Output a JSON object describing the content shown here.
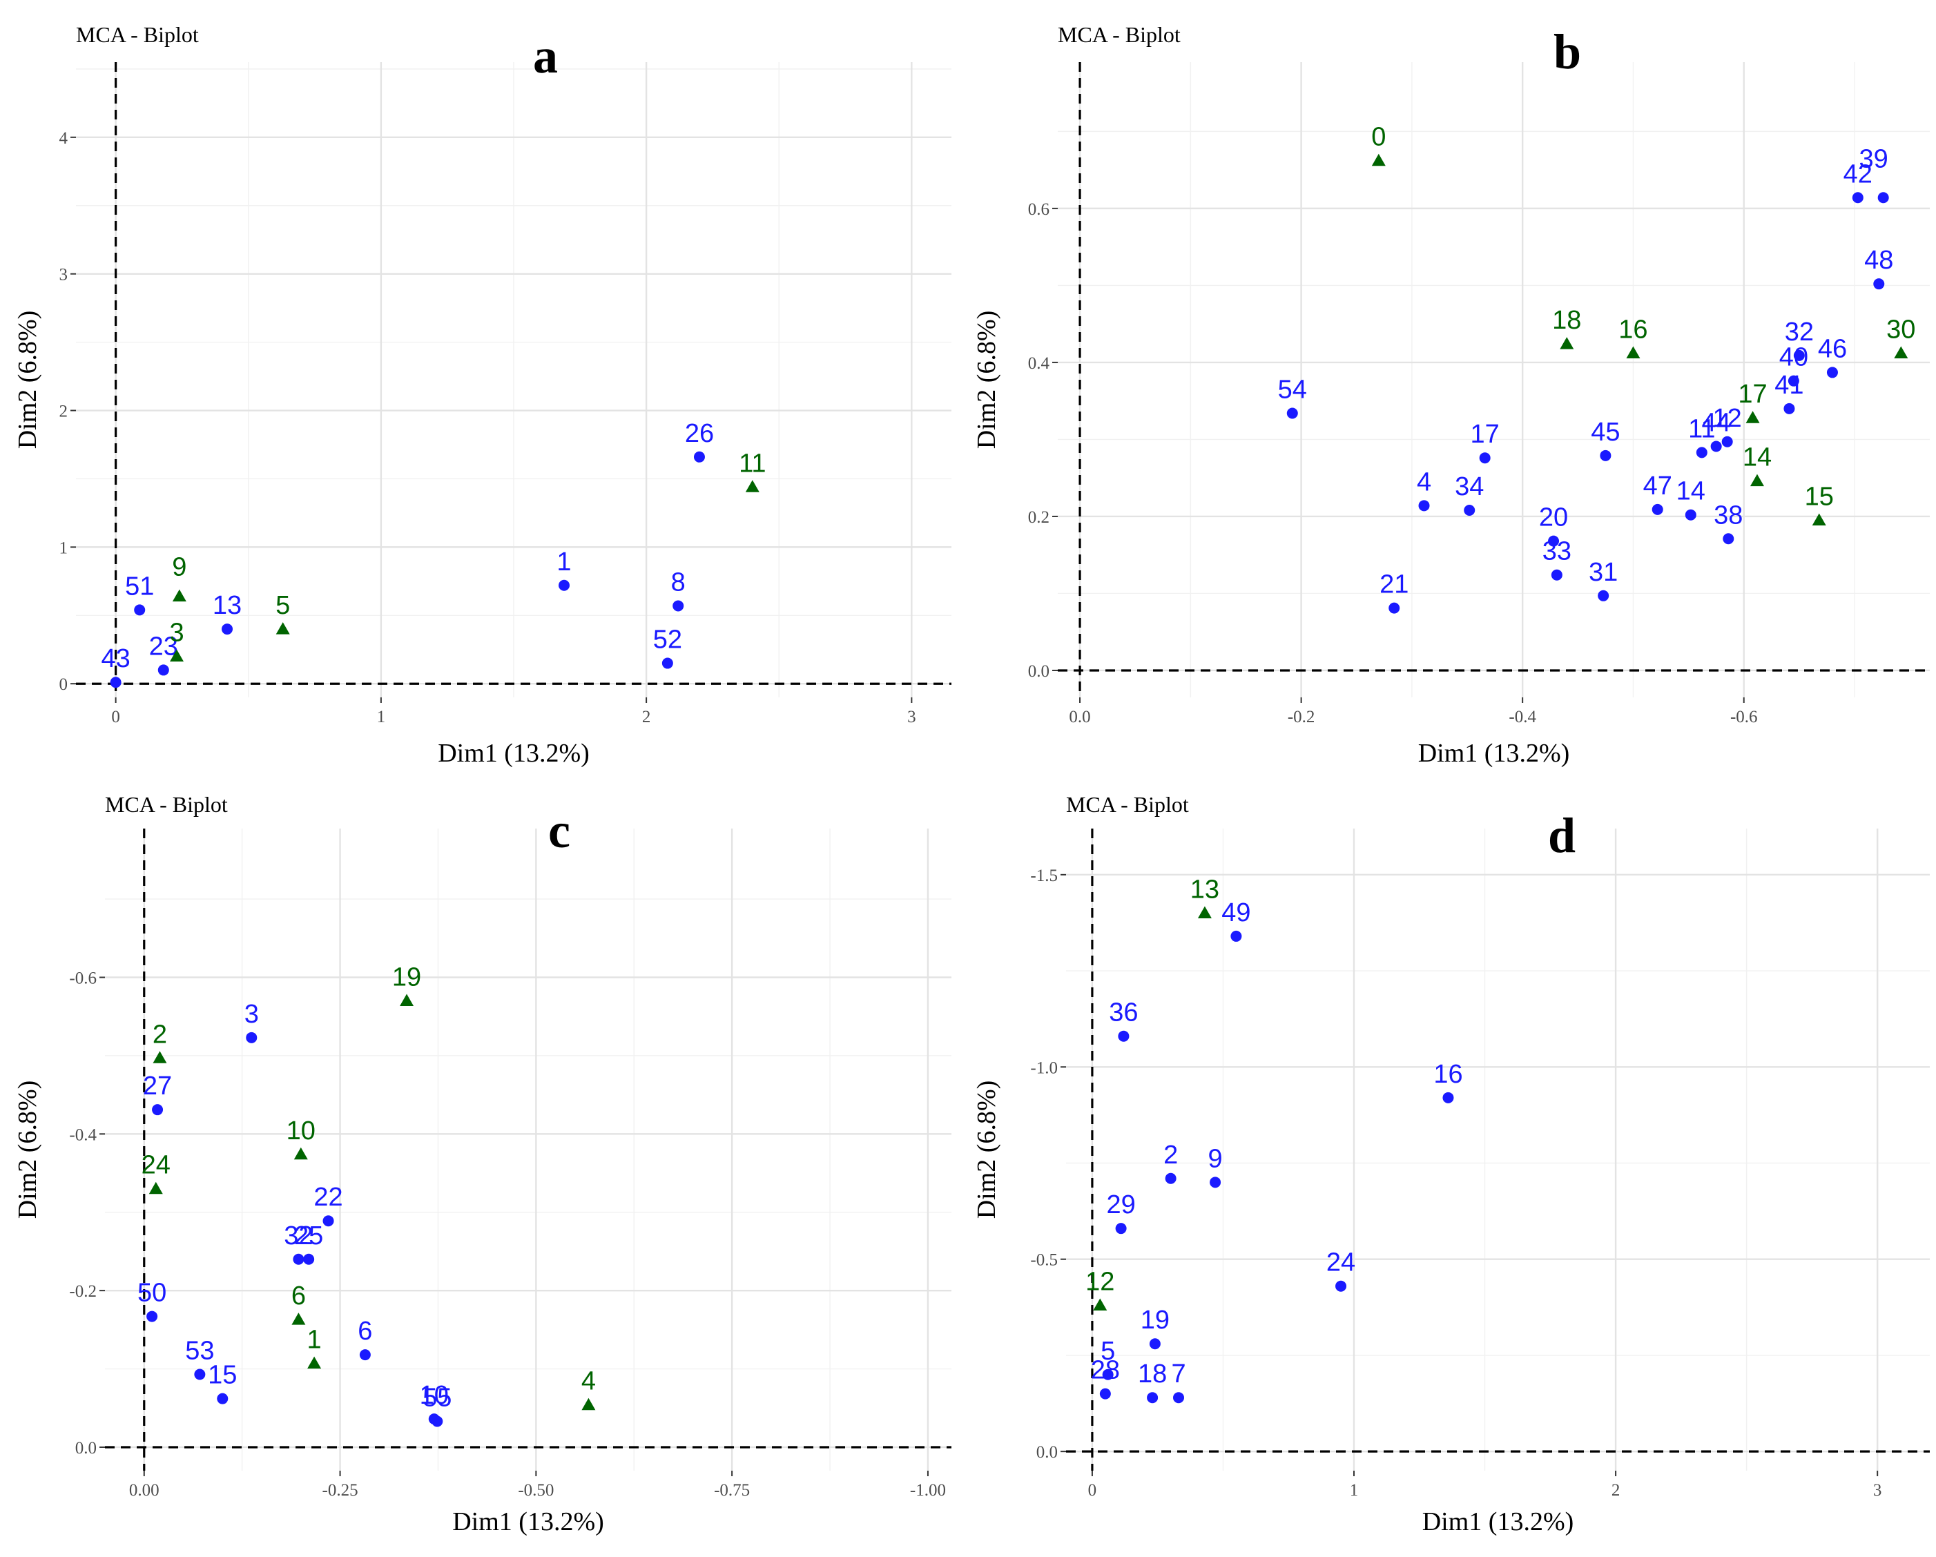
{
  "figure_title": "MCA - Biplot",
  "colors": {
    "ind": "#1a1aff",
    "var": "#006400"
  },
  "chart_data": [
    {
      "type": "scatter",
      "panel": "a",
      "title": "MCA - Biplot",
      "xlabel": "Dim1 (13.2%)",
      "ylabel": "Dim2 (6.8%)",
      "xlim": [
        -0.15,
        3.15
      ],
      "ylim": [
        -0.1,
        4.55
      ],
      "xticks": [
        0,
        1,
        2,
        3
      ],
      "xtick_labels": [
        "0",
        "1",
        "2",
        "3"
      ],
      "yticks": [
        0,
        1,
        2,
        3,
        4
      ],
      "ytick_labels": [
        "0",
        "1",
        "2",
        "3",
        "4"
      ],
      "points": [
        {
          "label": "43",
          "x": 0.0,
          "y": 0.01,
          "group": "ind"
        },
        {
          "label": "51",
          "x": 0.09,
          "y": 0.54,
          "group": "ind"
        },
        {
          "label": "23",
          "x": 0.18,
          "y": 0.1,
          "group": "ind"
        },
        {
          "label": "13",
          "x": 0.42,
          "y": 0.4,
          "group": "ind"
        },
        {
          "label": "1",
          "x": 1.69,
          "y": 0.72,
          "group": "ind"
        },
        {
          "label": "8",
          "x": 2.12,
          "y": 0.57,
          "group": "ind"
        },
        {
          "label": "52",
          "x": 2.08,
          "y": 0.15,
          "group": "ind"
        },
        {
          "label": "26",
          "x": 2.2,
          "y": 1.66,
          "group": "ind"
        },
        {
          "label": "9",
          "x": 0.24,
          "y": 0.64,
          "group": "var"
        },
        {
          "label": "3",
          "x": 0.23,
          "y": 0.2,
          "group": "var"
        },
        {
          "label": "5",
          "x": 0.63,
          "y": 0.4,
          "group": "var"
        },
        {
          "label": "11",
          "x": 2.4,
          "y": 1.44,
          "group": "var"
        }
      ]
    },
    {
      "type": "scatter",
      "panel": "b",
      "title": "MCA - Biplot",
      "xlabel": "Dim1 (13.2%)",
      "ylabel": "Dim2 (6.8%)",
      "xlim": [
        0.02,
        -0.768
      ],
      "ylim": [
        -0.035,
        0.79
      ],
      "xticks": [
        0,
        -0.2,
        -0.4,
        -0.6
      ],
      "xtick_labels": [
        "0.0",
        "-0.2",
        "-0.4",
        "-0.6"
      ],
      "yticks": [
        0,
        0.2,
        0.4,
        0.6
      ],
      "ytick_labels": [
        "0.0",
        "0.2",
        "0.4",
        "0.6"
      ],
      "points": [
        {
          "label": "54",
          "x": -0.192,
          "y": 0.334,
          "group": "ind"
        },
        {
          "label": "21",
          "x": -0.284,
          "y": 0.081,
          "group": "ind"
        },
        {
          "label": "4",
          "x": -0.311,
          "y": 0.214,
          "group": "ind"
        },
        {
          "label": "34",
          "x": -0.352,
          "y": 0.208,
          "group": "ind"
        },
        {
          "label": "17",
          "x": -0.366,
          "y": 0.276,
          "group": "ind"
        },
        {
          "label": "20",
          "x": -0.428,
          "y": 0.168,
          "group": "ind"
        },
        {
          "label": "33",
          "x": -0.431,
          "y": 0.124,
          "group": "ind"
        },
        {
          "label": "31",
          "x": -0.473,
          "y": 0.097,
          "group": "ind"
        },
        {
          "label": "45",
          "x": -0.475,
          "y": 0.279,
          "group": "ind"
        },
        {
          "label": "47",
          "x": -0.522,
          "y": 0.209,
          "group": "ind"
        },
        {
          "label": "14",
          "x": -0.552,
          "y": 0.202,
          "group": "ind"
        },
        {
          "label": "11",
          "x": -0.562,
          "y": 0.283,
          "group": "ind"
        },
        {
          "label": "44",
          "x": -0.575,
          "y": 0.291,
          "group": "ind"
        },
        {
          "label": "12",
          "x": -0.585,
          "y": 0.297,
          "group": "ind"
        },
        {
          "label": "38",
          "x": -0.586,
          "y": 0.171,
          "group": "ind"
        },
        {
          "label": "41",
          "x": -0.641,
          "y": 0.34,
          "group": "ind"
        },
        {
          "label": "40",
          "x": -0.645,
          "y": 0.376,
          "group": "ind"
        },
        {
          "label": "32",
          "x": -0.65,
          "y": 0.409,
          "group": "ind"
        },
        {
          "label": "46",
          "x": -0.68,
          "y": 0.387,
          "group": "ind"
        },
        {
          "label": "42",
          "x": -0.703,
          "y": 0.614,
          "group": "ind"
        },
        {
          "label": "39",
          "x": -0.726,
          "y": 0.614,
          "group": "ind"
        },
        {
          "label": "48",
          "x": -0.722,
          "y": 0.502,
          "group": "ind"
        },
        {
          "label": "0",
          "x": -0.27,
          "y": 0.662,
          "group": "var"
        },
        {
          "label": "18",
          "x": -0.44,
          "y": 0.424,
          "group": "var"
        },
        {
          "label": "16",
          "x": -0.5,
          "y": 0.412,
          "group": "var"
        },
        {
          "label": "17",
          "x": -0.608,
          "y": 0.328,
          "group": "var"
        },
        {
          "label": "14",
          "x": -0.612,
          "y": 0.246,
          "group": "var"
        },
        {
          "label": "15",
          "x": -0.668,
          "y": 0.195,
          "group": "var"
        },
        {
          "label": "30",
          "x": -0.742,
          "y": 0.412,
          "group": "var"
        }
      ]
    },
    {
      "type": "scatter",
      "panel": "c",
      "title": "MCA - Biplot",
      "xlabel": "Dim1 (13.2%)",
      "ylabel": "Dim2 (6.8%)",
      "xlim": [
        0.05,
        -1.03
      ],
      "ylim": [
        0.03,
        -0.79
      ],
      "xticks": [
        0,
        -0.25,
        -0.5,
        -0.75,
        -1.0
      ],
      "xtick_labels": [
        "0.00",
        "-0.25",
        "-0.50",
        "-0.75",
        "-1.00"
      ],
      "yticks": [
        0,
        -0.2,
        -0.4,
        -0.6
      ],
      "ytick_labels": [
        "0.0",
        "-0.2",
        "-0.4",
        "-0.6"
      ],
      "points": [
        {
          "label": "3",
          "x": -0.137,
          "y": -0.523,
          "group": "ind"
        },
        {
          "label": "27",
          "x": -0.017,
          "y": -0.431,
          "group": "ind"
        },
        {
          "label": "22",
          "x": -0.235,
          "y": -0.289,
          "group": "ind"
        },
        {
          "label": "32",
          "x": -0.197,
          "y": -0.24,
          "group": "ind"
        },
        {
          "label": "25",
          "x": -0.21,
          "y": -0.24,
          "group": "ind"
        },
        {
          "label": "50",
          "x": -0.01,
          "y": -0.167,
          "group": "ind"
        },
        {
          "label": "53",
          "x": -0.071,
          "y": -0.093,
          "group": "ind"
        },
        {
          "label": "15",
          "x": -0.1,
          "y": -0.062,
          "group": "ind"
        },
        {
          "label": "6",
          "x": -0.282,
          "y": -0.118,
          "group": "ind"
        },
        {
          "label": "10",
          "x": -0.37,
          "y": -0.036,
          "group": "ind"
        },
        {
          "label": "55",
          "x": -0.374,
          "y": -0.033,
          "group": "ind"
        },
        {
          "label": "2",
          "x": -0.02,
          "y": -0.497,
          "group": "var"
        },
        {
          "label": "24",
          "x": -0.015,
          "y": -0.33,
          "group": "var"
        },
        {
          "label": "19",
          "x": -0.335,
          "y": -0.57,
          "group": "var"
        },
        {
          "label": "10",
          "x": -0.2,
          "y": -0.374,
          "group": "var"
        },
        {
          "label": "6",
          "x": -0.197,
          "y": -0.163,
          "group": "var"
        },
        {
          "label": "1",
          "x": -0.217,
          "y": -0.107,
          "group": "var"
        },
        {
          "label": "4",
          "x": -0.567,
          "y": -0.054,
          "group": "var"
        }
      ]
    },
    {
      "type": "scatter",
      "panel": "d",
      "title": "MCA - Biplot",
      "xlabel": "Dim1 (13.2%)",
      "ylabel": "Dim2 (6.8%)",
      "xlim": [
        -0.1,
        3.2
      ],
      "ylim": [
        0.05,
        -1.62
      ],
      "xticks": [
        0,
        1,
        2,
        3
      ],
      "xtick_labels": [
        "0",
        "1",
        "2",
        "3"
      ],
      "yticks": [
        0,
        -0.5,
        -1.0,
        -1.5
      ],
      "ytick_labels": [
        "0.0",
        "-0.5",
        "-1.0",
        "-1.5"
      ],
      "points": [
        {
          "label": "49",
          "x": 0.55,
          "y": -1.34,
          "group": "ind"
        },
        {
          "label": "36",
          "x": 0.12,
          "y": -1.08,
          "group": "ind"
        },
        {
          "label": "16",
          "x": 1.36,
          "y": -0.92,
          "group": "ind"
        },
        {
          "label": "2",
          "x": 0.3,
          "y": -0.71,
          "group": "ind"
        },
        {
          "label": "9",
          "x": 0.47,
          "y": -0.7,
          "group": "ind"
        },
        {
          "label": "29",
          "x": 0.11,
          "y": -0.58,
          "group": "ind"
        },
        {
          "label": "24",
          "x": 0.95,
          "y": -0.43,
          "group": "ind"
        },
        {
          "label": "19",
          "x": 0.24,
          "y": -0.28,
          "group": "ind"
        },
        {
          "label": "5",
          "x": 0.06,
          "y": -0.2,
          "group": "ind"
        },
        {
          "label": "28",
          "x": 0.05,
          "y": -0.15,
          "group": "ind"
        },
        {
          "label": "18",
          "x": 0.23,
          "y": -0.14,
          "group": "ind"
        },
        {
          "label": "7",
          "x": 0.33,
          "y": -0.14,
          "group": "ind"
        },
        {
          "label": "13",
          "x": 0.43,
          "y": -1.4,
          "group": "var"
        },
        {
          "label": "12",
          "x": 0.03,
          "y": -0.38,
          "group": "var"
        }
      ]
    }
  ]
}
